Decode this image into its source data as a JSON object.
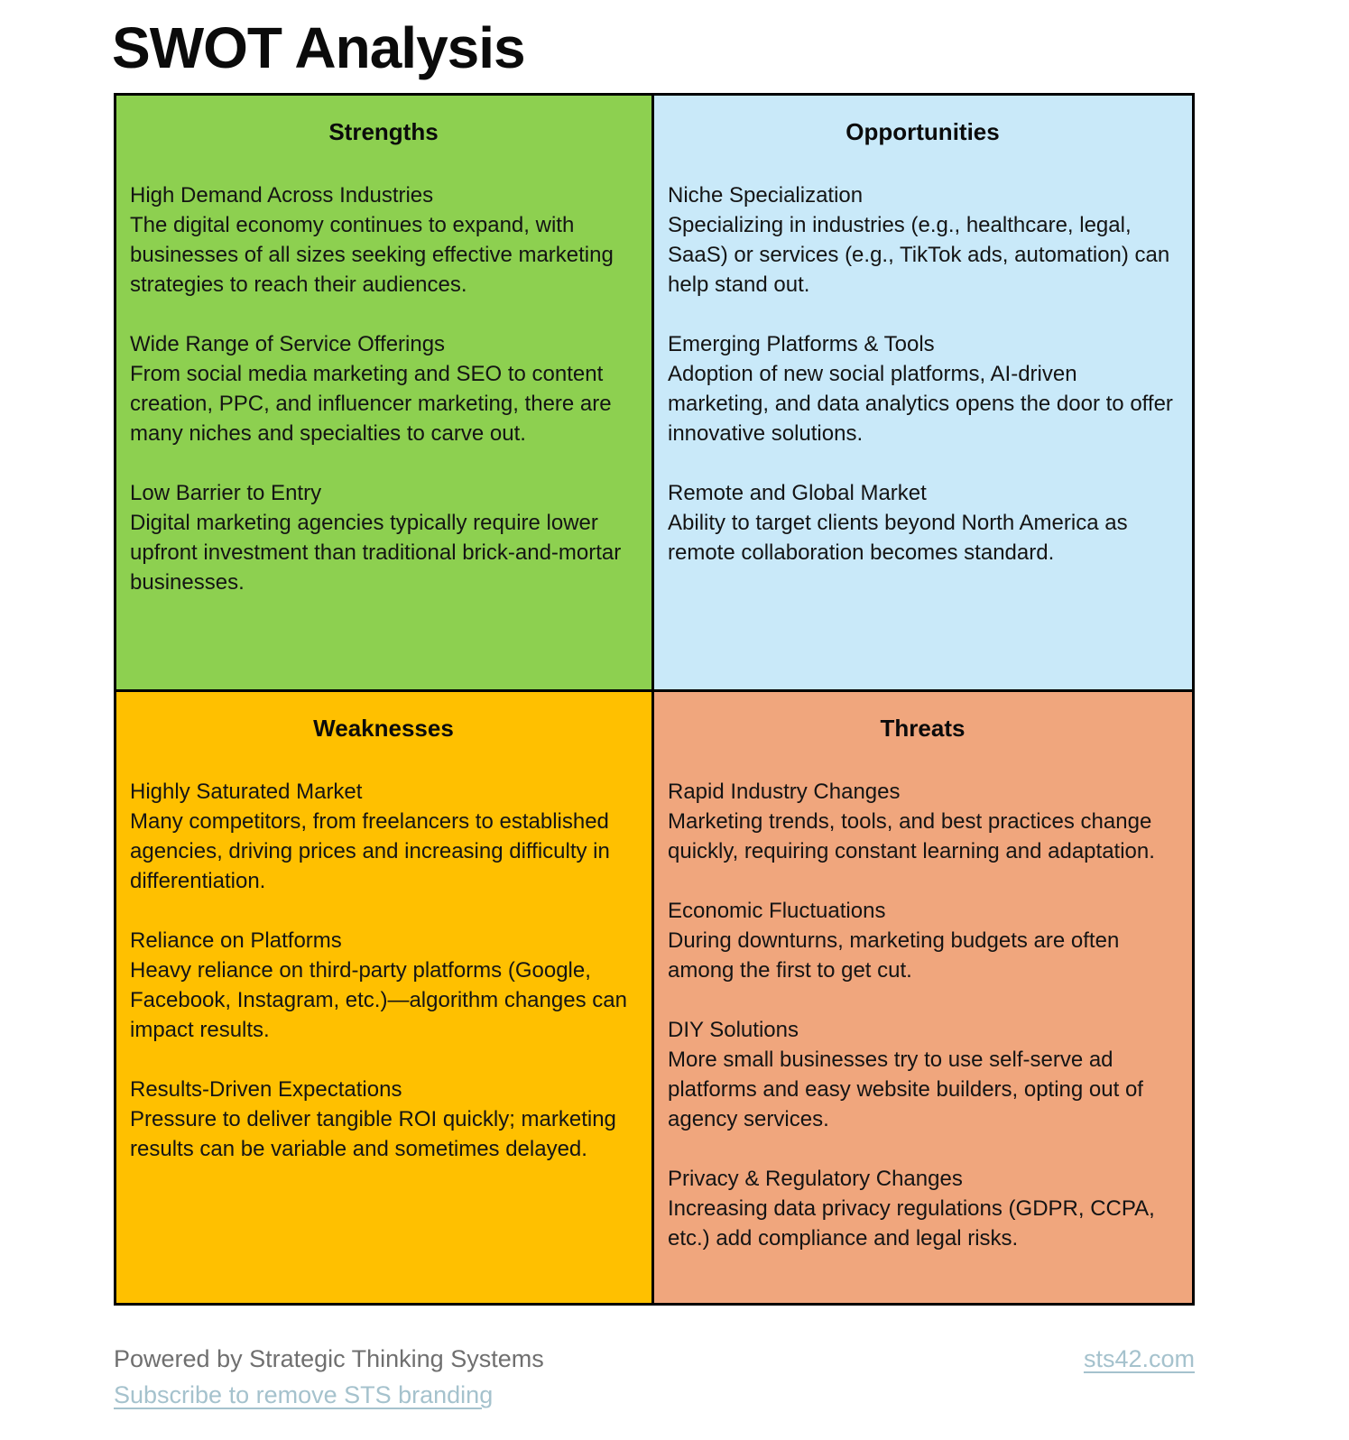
{
  "page": {
    "title": "SWOT Analysis"
  },
  "colors": {
    "strengths_bg": "#8dd050",
    "opportunities_bg": "#c9e9f9",
    "weaknesses_bg": "#ffc000",
    "threats_bg": "#f0a67d",
    "border": "#000000",
    "footer_text": "#6f6f6f",
    "footer_link": "#a5c2cd"
  },
  "quadrants": {
    "strengths": {
      "title": "Strengths",
      "items": [
        {
          "heading": "High Demand Across Industries",
          "body": "The digital economy continues to expand, with businesses of all sizes seeking effective marketing strategies to reach their audiences."
        },
        {
          "heading": "Wide Range of Service Offerings",
          "body": "From social media marketing and SEO to content creation, PPC, and influencer marketing, there are many niches and specialties to carve out."
        },
        {
          "heading": "Low Barrier to Entry",
          "body": "Digital marketing agencies typically require lower upfront investment than traditional brick-and-mortar businesses."
        }
      ]
    },
    "opportunities": {
      "title": "Opportunities",
      "items": [
        {
          "heading": "Niche Specialization",
          "body": "Specializing in industries (e.g., healthcare, legal, SaaS) or services (e.g., TikTok ads, automation) can help stand out."
        },
        {
          "heading": "Emerging Platforms & Tools",
          "body": "Adoption of new social platforms, AI-driven marketing, and data analytics opens the door to offer innovative solutions."
        },
        {
          "heading": "Remote and Global Market",
          "body": "Ability to target clients beyond North America as remote collaboration becomes standard."
        }
      ]
    },
    "weaknesses": {
      "title": "Weaknesses",
      "items": [
        {
          "heading": "Highly Saturated Market",
          "body": "Many competitors, from freelancers to established agencies, driving prices and increasing difficulty in differentiation."
        },
        {
          "heading": "Reliance on Platforms",
          "body": "Heavy reliance on third-party platforms (Google, Facebook, Instagram, etc.)—algorithm changes can impact results."
        },
        {
          "heading": "Results-Driven Expectations",
          "body": "Pressure to deliver tangible ROI quickly; marketing results can be variable and sometimes delayed."
        }
      ]
    },
    "threats": {
      "title": "Threats",
      "items": [
        {
          "heading": "Rapid Industry Changes",
          "body": "Marketing trends, tools, and best practices change quickly, requiring constant learning and adaptation."
        },
        {
          "heading": "Economic Fluctuations",
          "body": "During downturns, marketing budgets are often among the first to get cut."
        },
        {
          "heading": "DIY Solutions",
          "body": "More small businesses try to use self-serve ad platforms and easy website builders, opting out of agency services."
        },
        {
          "heading": "Privacy & Regulatory Changes",
          "body": "Increasing data privacy regulations (GDPR, CCPA, etc.) add compliance and legal risks."
        }
      ]
    }
  },
  "footer": {
    "powered_by": "Powered by Strategic Thinking Systems",
    "subscribe_link": "Subscribe to remove STS branding",
    "site_link": "sts42.com"
  }
}
